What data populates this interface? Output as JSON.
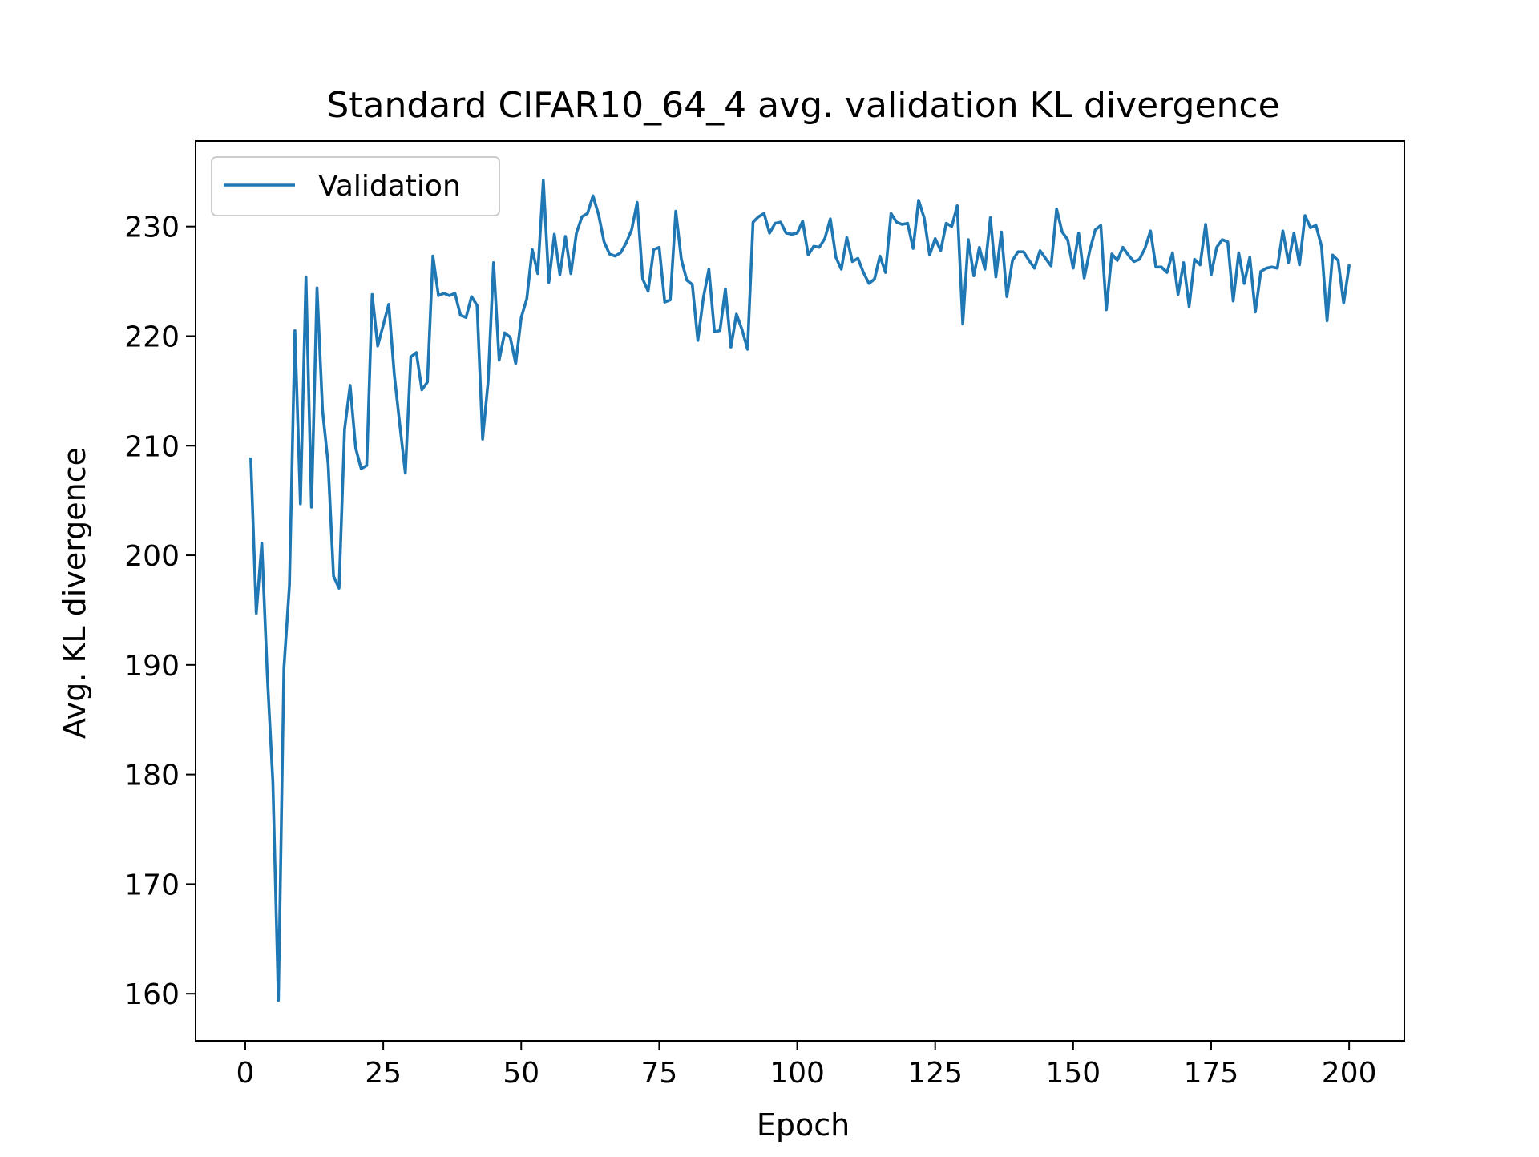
{
  "chart_data": {
    "type": "line",
    "title": "Standard CIFAR10_64_4 avg. validation KL divergence",
    "xlabel": "Epoch",
    "ylabel": "Avg. KL divergence",
    "xlim": [
      -9,
      210
    ],
    "ylim": [
      155.7,
      237.8
    ],
    "xticks": [
      0,
      25,
      50,
      75,
      100,
      125,
      150,
      175,
      200
    ],
    "yticks": [
      160,
      170,
      180,
      190,
      200,
      210,
      220,
      230
    ],
    "grid": false,
    "legend": {
      "position": "top-left",
      "entries": [
        "Validation"
      ]
    },
    "series": [
      {
        "name": "Validation",
        "color": "#1f77b4",
        "x": [
          1,
          2,
          3,
          4,
          5,
          6,
          7,
          8,
          9,
          10,
          11,
          12,
          13,
          14,
          15,
          16,
          17,
          18,
          19,
          20,
          21,
          22,
          23,
          24,
          25,
          26,
          27,
          28,
          29,
          30,
          31,
          32,
          33,
          34,
          35,
          36,
          37,
          38,
          39,
          40,
          41,
          42,
          43,
          44,
          45,
          46,
          47,
          48,
          49,
          50,
          51,
          52,
          53,
          54,
          55,
          56,
          57,
          58,
          59,
          60,
          61,
          62,
          63,
          64,
          65,
          66,
          67,
          68,
          69,
          70,
          71,
          72,
          73,
          74,
          75,
          76,
          77,
          78,
          79,
          80,
          81,
          82,
          83,
          84,
          85,
          86,
          87,
          88,
          89,
          90,
          91,
          92,
          93,
          94,
          95,
          96,
          97,
          98,
          99,
          100,
          101,
          102,
          103,
          104,
          105,
          106,
          107,
          108,
          109,
          110,
          111,
          112,
          113,
          114,
          115,
          116,
          117,
          118,
          119,
          120,
          121,
          122,
          123,
          124,
          125,
          126,
          127,
          128,
          129,
          130,
          131,
          132,
          133,
          134,
          135,
          136,
          137,
          138,
          139,
          140,
          141,
          142,
          143,
          144,
          145,
          146,
          147,
          148,
          149,
          150,
          151,
          152,
          153,
          154,
          155,
          156,
          157,
          158,
          159,
          160,
          161,
          162,
          163,
          164,
          165,
          166,
          167,
          168,
          169,
          170,
          171,
          172,
          173,
          174,
          175,
          176,
          177,
          178,
          179,
          180,
          181,
          182,
          183,
          184,
          185,
          186,
          187,
          188,
          189,
          190,
          191,
          192,
          193,
          194,
          195,
          196,
          197,
          198,
          199,
          200
        ],
        "values": [
          208.8,
          194.7,
          201.1,
          189.0,
          179.3,
          159.4,
          189.7,
          197.3,
          220.5,
          204.7,
          225.4,
          204.4,
          224.4,
          213.2,
          208.4,
          198.1,
          197.0,
          211.5,
          215.5,
          209.8,
          207.9,
          208.2,
          223.8,
          219.1,
          221.0,
          222.9,
          216.5,
          211.9,
          207.5,
          218.1,
          218.5,
          215.1,
          215.8,
          227.3,
          223.7,
          223.9,
          223.7,
          223.9,
          221.9,
          221.7,
          223.6,
          222.8,
          210.6,
          215.8,
          226.7,
          217.8,
          220.3,
          219.9,
          217.5,
          221.7,
          223.4,
          227.9,
          225.7,
          234.2,
          224.9,
          229.3,
          225.6,
          229.1,
          225.7,
          229.4,
          230.9,
          231.2,
          232.8,
          231.1,
          228.6,
          227.5,
          227.3,
          227.6,
          228.5,
          229.7,
          232.2,
          225.2,
          224.1,
          227.9,
          228.1,
          223.1,
          223.3,
          231.4,
          227.0,
          225.1,
          224.7,
          219.6,
          223.5,
          226.1,
          220.4,
          220.5,
          224.3,
          219.0,
          222.0,
          220.6,
          218.8,
          230.4,
          230.9,
          231.2,
          229.4,
          230.3,
          230.4,
          229.4,
          229.3,
          229.4,
          230.5,
          227.4,
          228.2,
          228.1,
          228.9,
          230.7,
          227.2,
          226.1,
          229.0,
          226.8,
          227.1,
          225.8,
          224.8,
          225.2,
          227.3,
          225.8,
          231.2,
          230.4,
          230.2,
          230.3,
          228.0,
          232.4,
          230.8,
          227.4,
          228.9,
          227.8,
          230.3,
          230.0,
          231.9,
          221.1,
          228.8,
          225.5,
          228.1,
          226.1,
          230.8,
          225.4,
          229.5,
          223.6,
          226.9,
          227.7,
          227.7,
          226.9,
          226.2,
          227.8,
          227.1,
          226.4,
          231.6,
          229.5,
          228.8,
          226.2,
          229.4,
          225.3,
          227.8,
          229.7,
          230.1,
          222.4,
          227.5,
          226.9,
          228.1,
          227.4,
          226.8,
          227.0,
          228.0,
          229.6,
          226.3,
          226.3,
          225.8,
          227.6,
          223.8,
          226.7,
          222.7,
          227.0,
          226.5,
          230.2,
          225.6,
          228.1,
          228.8,
          228.6,
          223.2,
          227.6,
          224.8,
          227.2,
          222.2,
          225.9,
          226.2,
          226.3,
          226.2,
          229.6,
          226.7,
          229.4,
          226.5,
          231.0,
          229.9,
          230.1,
          228.2,
          221.4,
          227.4,
          226.9,
          223.0,
          226.4
        ]
      }
    ]
  }
}
